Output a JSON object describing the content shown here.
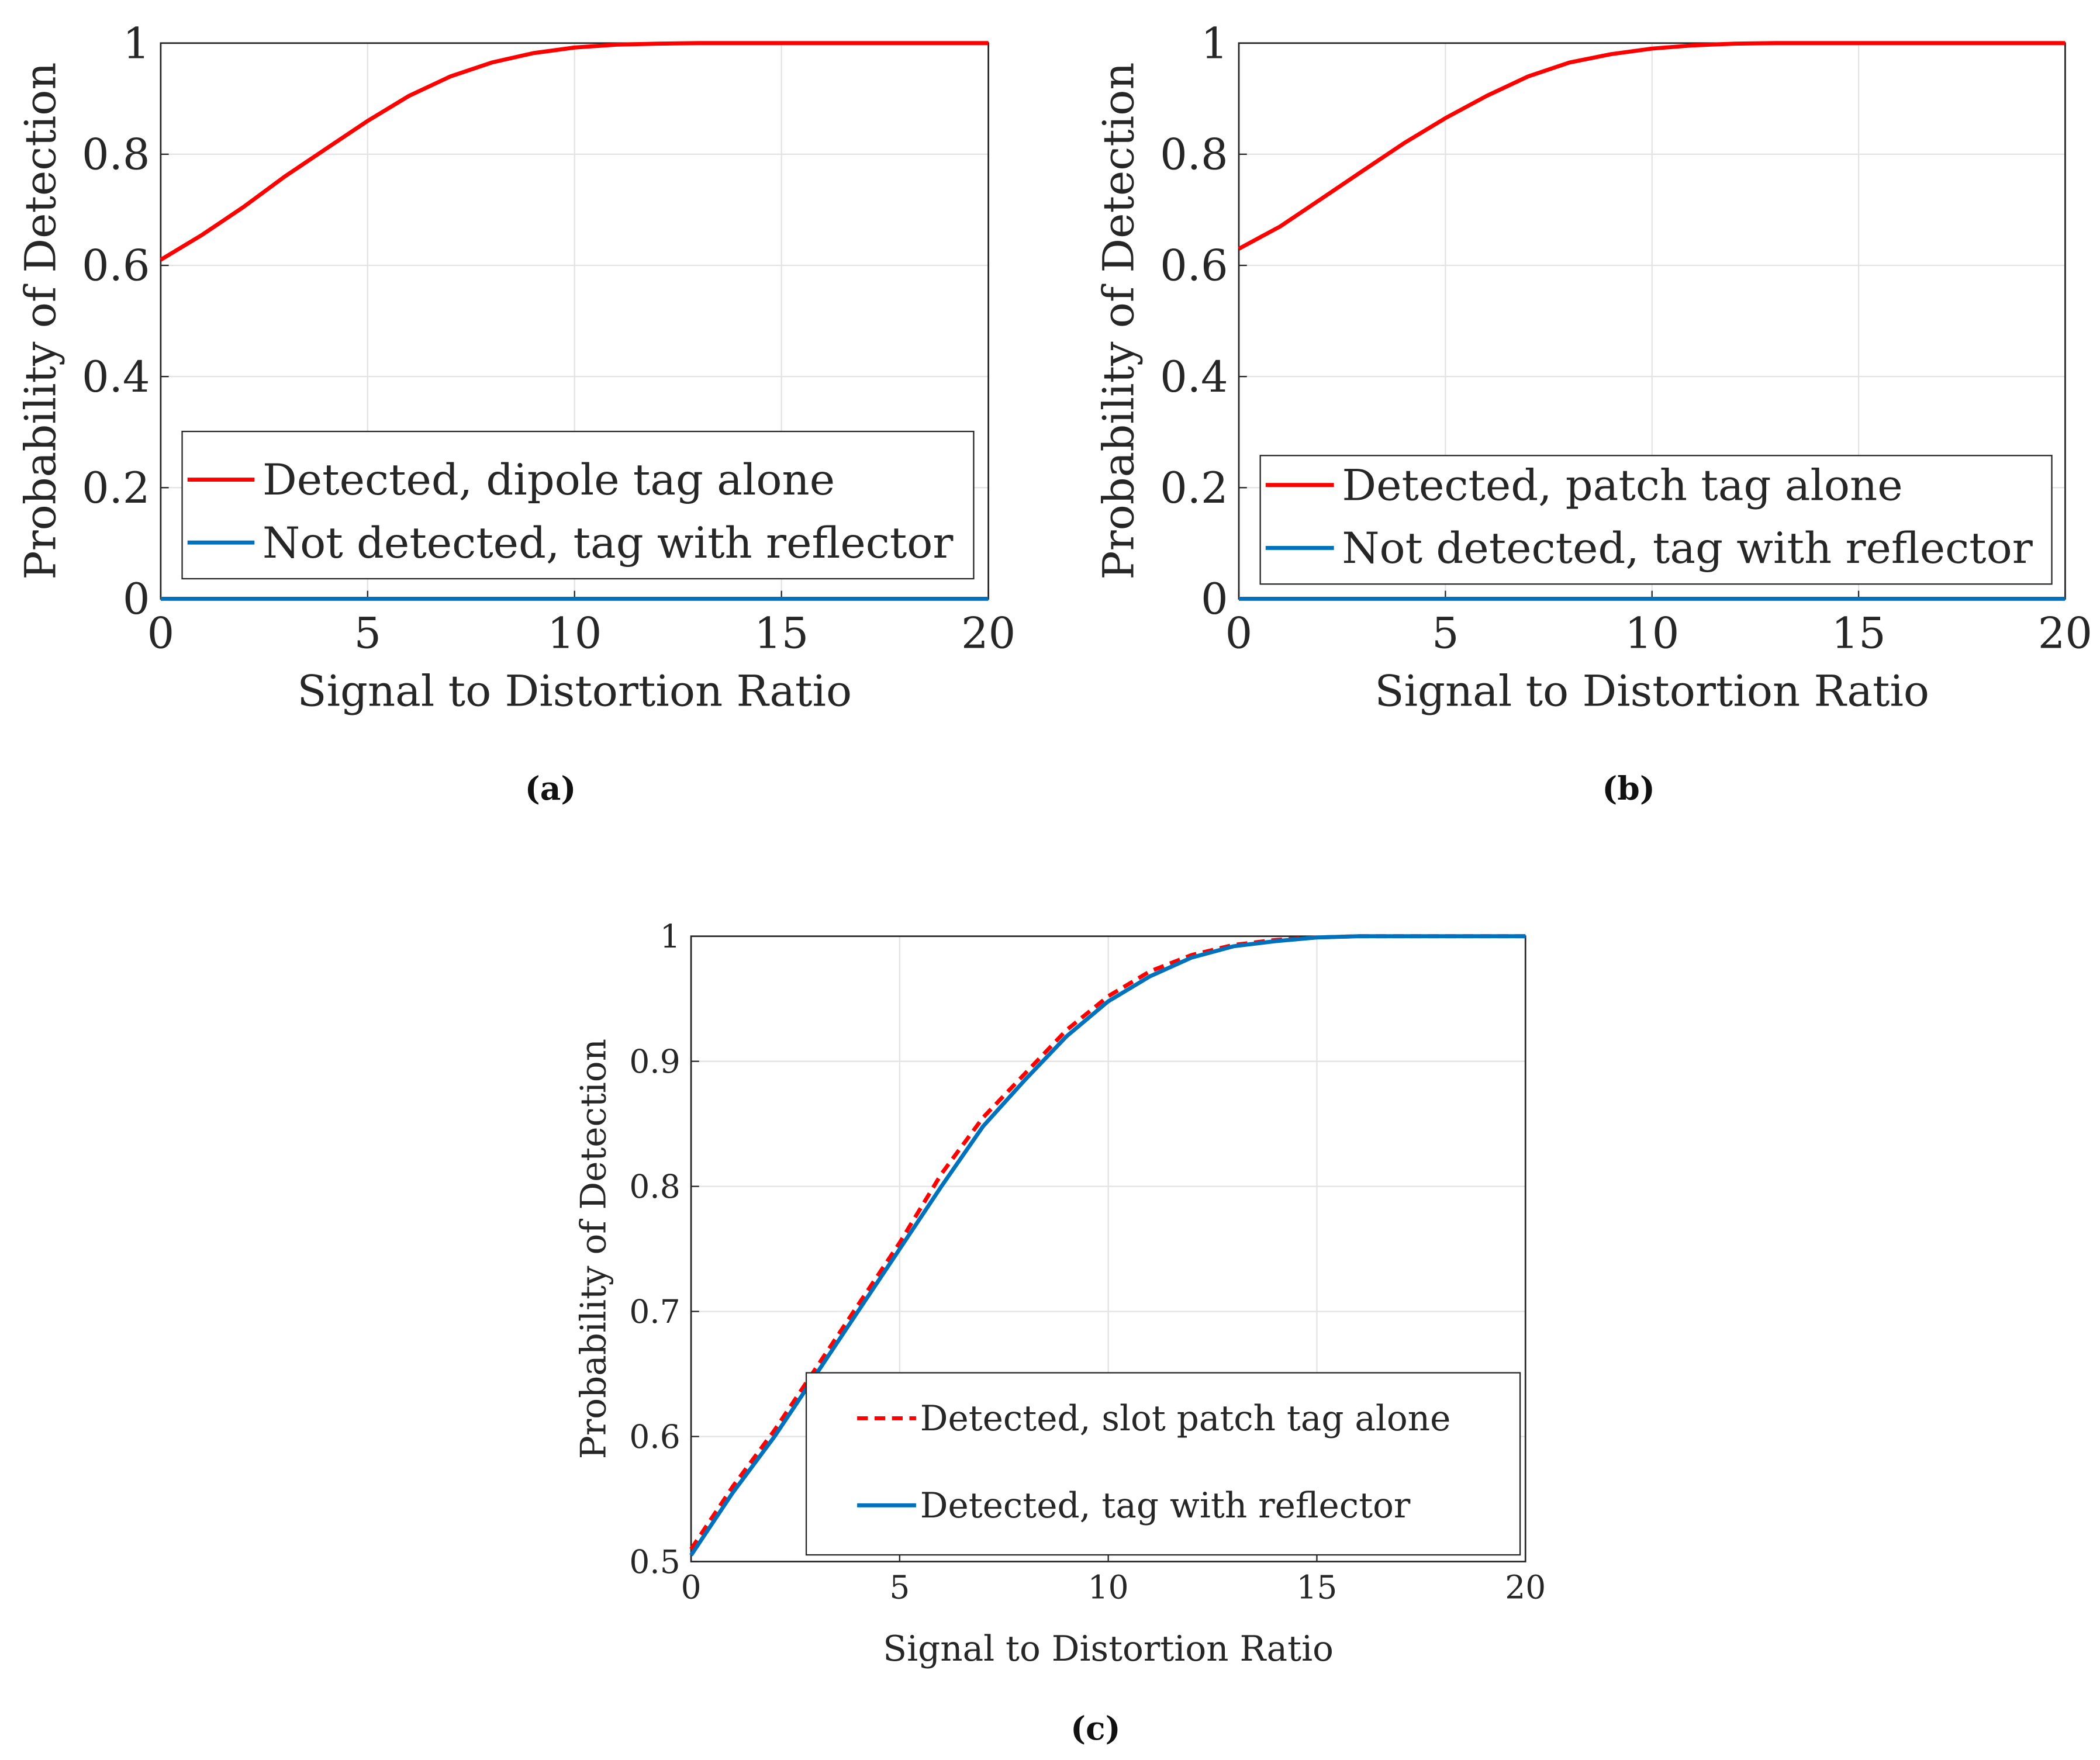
{
  "chart_data": [
    {
      "type": "line",
      "caption": "(a)",
      "xlabel": "Signal to Distortion Ratio",
      "ylabel": "Probability of Detection",
      "xlim": [
        0,
        20
      ],
      "ylim": [
        0,
        1
      ],
      "xticks": [
        "0",
        "5",
        "10",
        "15",
        "20"
      ],
      "yticks": [
        "0",
        "0.2",
        "0.4",
        "0.6",
        "0.8",
        "1"
      ],
      "grid": true,
      "legend_position": "bottom",
      "x": [
        0,
        1,
        2,
        3,
        4,
        5,
        6,
        7,
        8,
        9,
        10,
        11,
        12,
        13,
        14,
        15,
        16,
        17,
        18,
        19,
        20
      ],
      "series": [
        {
          "name": "Detected, dipole tag alone",
          "color": "#ff0000",
          "style": "solid",
          "values": [
            0.61,
            0.655,
            0.705,
            0.76,
            0.81,
            0.86,
            0.905,
            0.94,
            0.965,
            0.982,
            0.992,
            0.997,
            0.999,
            1,
            1,
            1,
            1,
            1,
            1,
            1,
            1
          ]
        },
        {
          "name": "Not detected, tag with reflector",
          "color": "#0072bd",
          "style": "solid",
          "values": [
            0,
            0,
            0,
            0,
            0,
            0,
            0,
            0,
            0,
            0,
            0,
            0,
            0,
            0,
            0,
            0,
            0,
            0,
            0,
            0,
            0
          ]
        }
      ]
    },
    {
      "type": "line",
      "caption": "(b)",
      "xlabel": "Signal to Distortion Ratio",
      "ylabel": "Probability of Detection",
      "xlim": [
        0,
        20
      ],
      "ylim": [
        0,
        1
      ],
      "xticks": [
        "0",
        "5",
        "10",
        "15",
        "20"
      ],
      "yticks": [
        "0",
        "0.2",
        "0.4",
        "0.6",
        "0.8",
        "1"
      ],
      "grid": true,
      "legend_position": "bottom",
      "x": [
        0,
        1,
        2,
        3,
        4,
        5,
        6,
        7,
        8,
        9,
        10,
        11,
        12,
        13,
        14,
        15,
        16,
        17,
        18,
        19,
        20
      ],
      "series": [
        {
          "name": "Detected, patch tag alone",
          "color": "#ff0000",
          "style": "solid",
          "values": [
            0.63,
            0.67,
            0.72,
            0.77,
            0.82,
            0.865,
            0.905,
            0.94,
            0.965,
            0.98,
            0.99,
            0.996,
            0.999,
            1,
            1,
            1,
            1,
            1,
            1,
            1,
            1
          ]
        },
        {
          "name": "Not detected, tag with reflector",
          "color": "#0072bd",
          "style": "solid",
          "values": [
            0,
            0,
            0,
            0,
            0,
            0,
            0,
            0,
            0,
            0,
            0,
            0,
            0,
            0,
            0,
            0,
            0,
            0,
            0,
            0,
            0
          ]
        }
      ]
    },
    {
      "type": "line",
      "caption": "(c)",
      "xlabel": "Signal to Distortion Ratio",
      "ylabel": "Probability of Detection",
      "xlim": [
        0,
        20
      ],
      "ylim": [
        0.5,
        1
      ],
      "xticks": [
        "0",
        "5",
        "10",
        "15",
        "20"
      ],
      "yticks": [
        "0.5",
        "0.6",
        "0.7",
        "0.8",
        "0.9",
        "1"
      ],
      "grid": true,
      "legend_position": "bottom-right",
      "x": [
        0,
        1,
        2,
        3,
        4,
        5,
        6,
        7,
        8,
        9,
        10,
        11,
        12,
        13,
        14,
        15,
        16,
        17,
        18,
        19,
        20
      ],
      "series": [
        {
          "name": "Detected, slot patch tag alone",
          "color": "#ff0000",
          "style": "dashed",
          "values": [
            0.51,
            0.56,
            0.605,
            0.655,
            0.705,
            0.755,
            0.81,
            0.855,
            0.89,
            0.925,
            0.952,
            0.972,
            0.985,
            0.993,
            0.997,
            0.999,
            1,
            1,
            1,
            1,
            1
          ]
        },
        {
          "name": "Detected, tag with reflector",
          "color": "#0072bd",
          "style": "solid",
          "values": [
            0.505,
            0.555,
            0.6,
            0.65,
            0.7,
            0.75,
            0.8,
            0.848,
            0.885,
            0.92,
            0.948,
            0.968,
            0.983,
            0.992,
            0.996,
            0.999,
            1,
            1,
            1,
            1,
            1
          ]
        }
      ]
    }
  ]
}
